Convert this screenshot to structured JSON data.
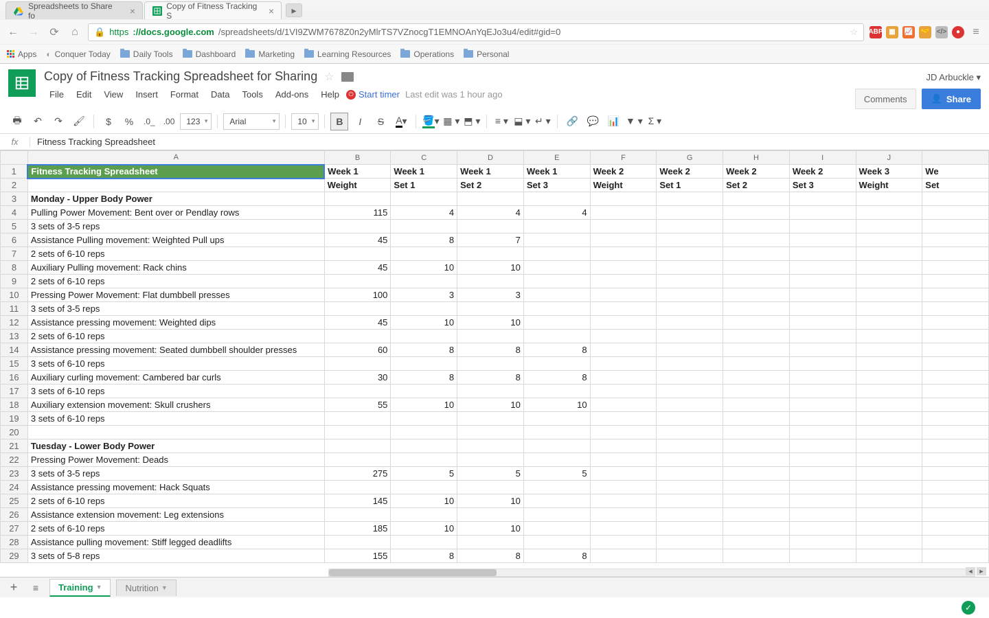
{
  "browser": {
    "tabs": [
      {
        "title": "Spreadsheets to Share fo",
        "active": false
      },
      {
        "title": "Copy of Fitness Tracking S",
        "active": true
      }
    ],
    "url": {
      "scheme": "https",
      "host": "://docs.google.com",
      "path": "/spreadsheets/d/1VI9ZWM7678Z0n2yMlrTS7VZnocgT1EMNOAnYqEJo3u4/edit#gid=0"
    },
    "bookmarks": [
      {
        "icon": "apps",
        "label": "Apps"
      },
      {
        "icon": "page",
        "label": "Conquer Today"
      },
      {
        "icon": "folder",
        "label": "Daily Tools"
      },
      {
        "icon": "folder",
        "label": "Dashboard"
      },
      {
        "icon": "folder",
        "label": "Marketing"
      },
      {
        "icon": "folder",
        "label": "Learning Resources"
      },
      {
        "icon": "folder",
        "label": "Operations"
      },
      {
        "icon": "folder",
        "label": "Personal"
      }
    ],
    "ext_colors": [
      "#d33",
      "#e8a33d",
      "#f07030",
      "#e8a33d",
      "#bbb",
      "#d33"
    ]
  },
  "doc": {
    "title": "Copy of Fitness Tracking Spreadsheet for Sharing",
    "user": "JD Arbuckle",
    "comments_label": "Comments",
    "share_label": "Share",
    "menus": [
      "File",
      "Edit",
      "View",
      "Insert",
      "Format",
      "Data",
      "Tools",
      "Add-ons",
      "Help"
    ],
    "start_timer": "Start timer",
    "last_edit": "Last edit was 1 hour ago"
  },
  "toolbar": {
    "font_name": "Arial",
    "font_size": "10",
    "number_format": "123",
    "currency": "$",
    "percent": "%"
  },
  "formula": {
    "label": "fx",
    "value": "Fitness Tracking Spreadsheet"
  },
  "sheet": {
    "columns": [
      "A",
      "B",
      "C",
      "D",
      "E",
      "F",
      "G",
      "H",
      "I",
      "J",
      ""
    ],
    "header_colors": {
      "title_bg": "#5a9e4e",
      "title_fg": "#ffffff",
      "selection_border": "#3b7ddd"
    },
    "rows": [
      {
        "n": 1,
        "a": "Fitness Tracking Spreadsheet",
        "vals": [
          "Week 1",
          "Week 1",
          "Week 1",
          "Week 1",
          "Week 2",
          "Week 2",
          "Week 2",
          "Week 2",
          "Week 3",
          "We"
        ],
        "title": true,
        "hdr": true
      },
      {
        "n": 2,
        "a": "",
        "vals": [
          "Weight",
          "Set 1",
          "Set 2",
          "Set 3",
          "Weight",
          "Set 1",
          "Set 2",
          "Set 3",
          "Weight",
          "Set"
        ],
        "hdr": true
      },
      {
        "n": 3,
        "a": "Monday - Upper Body Power",
        "vals": [
          "",
          "",
          "",
          "",
          "",
          "",
          "",
          "",
          "",
          ""
        ],
        "bold": true
      },
      {
        "n": 4,
        "a": "Pulling Power Movement: Bent over or Pendlay rows",
        "vals": [
          "115",
          "4",
          "4",
          "4",
          "",
          "",
          "",
          "",
          "",
          ""
        ]
      },
      {
        "n": 5,
        "a": "3 sets of 3-5 reps",
        "vals": [
          "",
          "",
          "",
          "",
          "",
          "",
          "",
          "",
          "",
          ""
        ]
      },
      {
        "n": 6,
        "a": "Assistance Pulling movement: Weighted Pull ups",
        "vals": [
          "45",
          "8",
          "7",
          "",
          "",
          "",
          "",
          "",
          "",
          ""
        ]
      },
      {
        "n": 7,
        "a": "2 sets of 6-10 reps",
        "vals": [
          "",
          "",
          "",
          "",
          "",
          "",
          "",
          "",
          "",
          ""
        ]
      },
      {
        "n": 8,
        "a": "Auxiliary Pulling movement: Rack chins",
        "vals": [
          "45",
          "10",
          "10",
          "",
          "",
          "",
          "",
          "",
          "",
          ""
        ]
      },
      {
        "n": 9,
        "a": "2 sets of 6-10 reps",
        "vals": [
          "",
          "",
          "",
          "",
          "",
          "",
          "",
          "",
          "",
          ""
        ]
      },
      {
        "n": 10,
        "a": "Pressing Power Movement: Flat dumbbell presses",
        "vals": [
          "100",
          "3",
          "3",
          "",
          "",
          "",
          "",
          "",
          "",
          ""
        ]
      },
      {
        "n": 11,
        "a": "3 sets of 3-5 reps",
        "vals": [
          "",
          "",
          "",
          "",
          "",
          "",
          "",
          "",
          "",
          ""
        ]
      },
      {
        "n": 12,
        "a": "Assistance pressing movement: Weighted dips",
        "vals": [
          "45",
          "10",
          "10",
          "",
          "",
          "",
          "",
          "",
          "",
          ""
        ]
      },
      {
        "n": 13,
        "a": "2 sets of 6-10 reps",
        "vals": [
          "",
          "",
          "",
          "",
          "",
          "",
          "",
          "",
          "",
          ""
        ]
      },
      {
        "n": 14,
        "a": "Assistance pressing movement: Seated dumbbell shoulder presses",
        "vals": [
          "60",
          "8",
          "8",
          "8",
          "",
          "",
          "",
          "",
          "",
          ""
        ]
      },
      {
        "n": 15,
        "a": "3 sets of 6-10 reps",
        "vals": [
          "",
          "",
          "",
          "",
          "",
          "",
          "",
          "",
          "",
          ""
        ]
      },
      {
        "n": 16,
        "a": "Auxiliary curling movement: Cambered bar curls",
        "vals": [
          "30",
          "8",
          "8",
          "8",
          "",
          "",
          "",
          "",
          "",
          ""
        ]
      },
      {
        "n": 17,
        "a": "3 sets of 6-10 reps",
        "vals": [
          "",
          "",
          "",
          "",
          "",
          "",
          "",
          "",
          "",
          ""
        ]
      },
      {
        "n": 18,
        "a": "Auxiliary extension movement: Skull crushers",
        "vals": [
          "55",
          "10",
          "10",
          "10",
          "",
          "",
          "",
          "",
          "",
          ""
        ]
      },
      {
        "n": 19,
        "a": "3 sets of 6-10 reps",
        "vals": [
          "",
          "",
          "",
          "",
          "",
          "",
          "",
          "",
          "",
          ""
        ]
      },
      {
        "n": 20,
        "a": "",
        "vals": [
          "",
          "",
          "",
          "",
          "",
          "",
          "",
          "",
          "",
          ""
        ]
      },
      {
        "n": 21,
        "a": "Tuesday - Lower Body Power",
        "vals": [
          "",
          "",
          "",
          "",
          "",
          "",
          "",
          "",
          "",
          ""
        ],
        "bold": true
      },
      {
        "n": 22,
        "a": "Pressing Power Movement: Deads",
        "vals": [
          "",
          "",
          "",
          "",
          "",
          "",
          "",
          "",
          "",
          ""
        ]
      },
      {
        "n": 23,
        "a": "3 sets of 3-5 reps",
        "vals": [
          "275",
          "5",
          "5",
          "5",
          "",
          "",
          "",
          "",
          "",
          ""
        ]
      },
      {
        "n": 24,
        "a": "Assistance pressing movement: Hack Squats",
        "vals": [
          "",
          "",
          "",
          "",
          "",
          "",
          "",
          "",
          "",
          ""
        ]
      },
      {
        "n": 25,
        "a": "2 sets of 6-10 reps",
        "vals": [
          "145",
          "10",
          "10",
          "",
          "",
          "",
          "",
          "",
          "",
          ""
        ]
      },
      {
        "n": 26,
        "a": "Assistance extension movement: Leg extensions",
        "vals": [
          "",
          "",
          "",
          "",
          "",
          "",
          "",
          "",
          "",
          ""
        ]
      },
      {
        "n": 27,
        "a": "2 sets of 6-10 reps",
        "vals": [
          "185",
          "10",
          "10",
          "",
          "",
          "",
          "",
          "",
          "",
          ""
        ]
      },
      {
        "n": 28,
        "a": "Assistance pulling movement: Stiff legged deadlifts",
        "vals": [
          "",
          "",
          "",
          "",
          "",
          "",
          "",
          "",
          "",
          ""
        ]
      },
      {
        "n": 29,
        "a": "3 sets of 5-8 reps",
        "vals": [
          "155",
          "8",
          "8",
          "8",
          "",
          "",
          "",
          "",
          "",
          ""
        ]
      }
    ]
  },
  "sheets": {
    "tabs": [
      {
        "name": "Training",
        "active": true
      },
      {
        "name": "Nutrition",
        "active": false
      }
    ]
  }
}
